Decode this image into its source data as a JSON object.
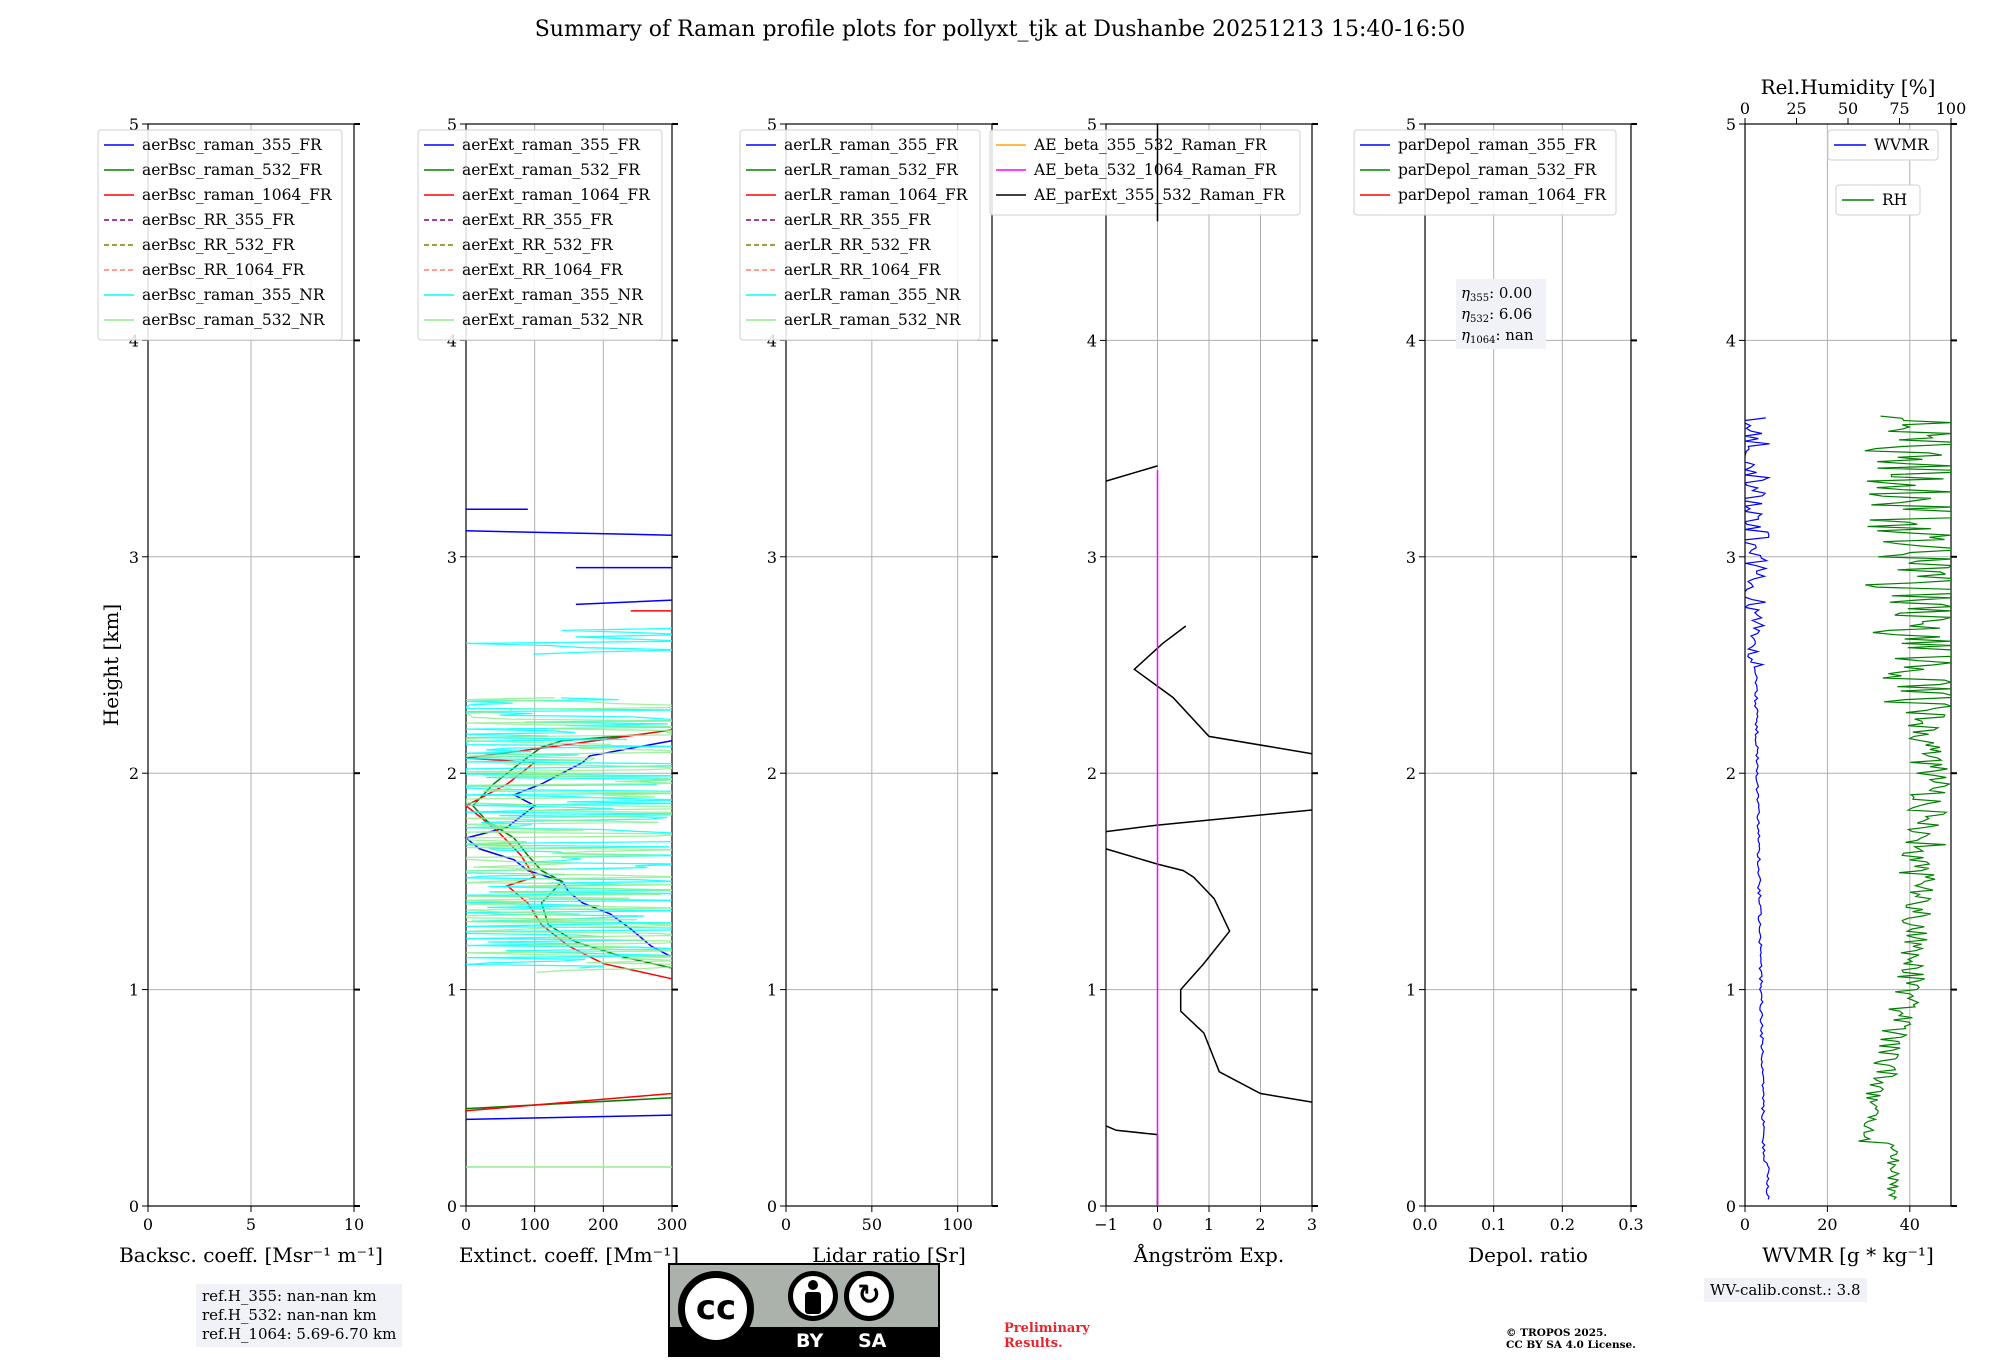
{
  "title": "Summary of Raman profile plots for pollyxt_tjk at Dushanbe 20251213 15:40-16:50",
  "colors": {
    "blue": "#0000ff",
    "green": "#008000",
    "red": "#ff0000",
    "purple": "#800080",
    "olive": "#808000",
    "salmon": "#fa8072",
    "cyan": "#00ffff",
    "lightgreen": "#90ee90",
    "orange": "#ffa500",
    "magenta": "#ff00ff",
    "black": "#000000"
  },
  "panels": [
    {
      "key": "bsc",
      "xlabel": "Backsc. coeff. [Msr⁻¹ m⁻¹]",
      "xticks": [
        "0",
        "5",
        "10"
      ],
      "xlim": [
        0,
        10
      ],
      "ylabel": "Height [km]",
      "yticks": [
        "0",
        "1",
        "2",
        "3",
        "4",
        "5"
      ],
      "legend": [
        {
          "label": "aerBsc_raman_355_FR",
          "color": "#0000ff",
          "dash": false
        },
        {
          "label": "aerBsc_raman_532_FR",
          "color": "#008000",
          "dash": false
        },
        {
          "label": "aerBsc_raman_1064_FR",
          "color": "#ff0000",
          "dash": false
        },
        {
          "label": "aerBsc_RR_355_FR",
          "color": "#800080",
          "dash": true
        },
        {
          "label": "aerBsc_RR_532_FR",
          "color": "#808000",
          "dash": true
        },
        {
          "label": "aerBsc_RR_1064_FR",
          "color": "#fa8072",
          "dash": true
        },
        {
          "label": "aerBsc_raman_355_NR",
          "color": "#00ffff",
          "dash": false
        },
        {
          "label": "aerBsc_raman_532_NR",
          "color": "#90ee90",
          "dash": false
        }
      ]
    },
    {
      "key": "ext",
      "xlabel": "Extinct. coeff. [Mm⁻¹]",
      "xticks": [
        "0",
        "100",
        "200",
        "300"
      ],
      "xlim": [
        0,
        300
      ],
      "yticks": [
        "0",
        "1",
        "2",
        "3",
        "4",
        "5"
      ],
      "legend": [
        {
          "label": "aerExt_raman_355_FR",
          "color": "#0000ff",
          "dash": false
        },
        {
          "label": "aerExt_raman_532_FR",
          "color": "#008000",
          "dash": false
        },
        {
          "label": "aerExt_raman_1064_FR",
          "color": "#ff0000",
          "dash": false
        },
        {
          "label": "aerExt_RR_355_FR",
          "color": "#800080",
          "dash": true
        },
        {
          "label": "aerExt_RR_532_FR",
          "color": "#808000",
          "dash": true
        },
        {
          "label": "aerExt_RR_1064_FR",
          "color": "#fa8072",
          "dash": true
        },
        {
          "label": "aerExt_raman_355_NR",
          "color": "#00ffff",
          "dash": false
        },
        {
          "label": "aerExt_raman_532_NR",
          "color": "#90ee90",
          "dash": false
        }
      ]
    },
    {
      "key": "lr",
      "xlabel": "Lidar ratio [Sr]",
      "xticks": [
        "0",
        "50",
        "100"
      ],
      "xlim": [
        0,
        120
      ],
      "yticks": [
        "0",
        "1",
        "2",
        "3",
        "4",
        "5"
      ],
      "legend": [
        {
          "label": "aerLR_raman_355_FR",
          "color": "#0000ff",
          "dash": false
        },
        {
          "label": "aerLR_raman_532_FR",
          "color": "#008000",
          "dash": false
        },
        {
          "label": "aerLR_raman_1064_FR",
          "color": "#ff0000",
          "dash": false
        },
        {
          "label": "aerLR_RR_355_FR",
          "color": "#800080",
          "dash": true
        },
        {
          "label": "aerLR_RR_532_FR",
          "color": "#808000",
          "dash": true
        },
        {
          "label": "aerLR_RR_1064_FR",
          "color": "#fa8072",
          "dash": true
        },
        {
          "label": "aerLR_raman_355_NR",
          "color": "#00ffff",
          "dash": false
        },
        {
          "label": "aerLR_raman_532_NR",
          "color": "#90ee90",
          "dash": false
        }
      ]
    },
    {
      "key": "ae",
      "xlabel": "Ångström Exp.",
      "xticks": [
        "−1",
        "0",
        "1",
        "2",
        "3"
      ],
      "xlim": [
        -1,
        3
      ],
      "yticks": [
        "0",
        "1",
        "2",
        "3",
        "4",
        "5"
      ],
      "legend": [
        {
          "label": "AE_beta_355_532_Raman_FR",
          "color": "#ffa500",
          "dash": false
        },
        {
          "label": "AE_beta_532_1064_Raman_FR",
          "color": "#ff00ff",
          "dash": false
        },
        {
          "label": "AE_parExt_355_532_Raman_FR",
          "color": "#000000",
          "dash": false
        }
      ]
    },
    {
      "key": "depol",
      "xlabel": "Depol. ratio",
      "xticks": [
        "0.0",
        "0.1",
        "0.2",
        "0.3"
      ],
      "xlim": [
        0,
        0.3
      ],
      "yticks": [
        "0",
        "1",
        "2",
        "3",
        "4",
        "5"
      ],
      "legend": [
        {
          "label": "parDepol_raman_355_FR",
          "color": "#0000ff",
          "dash": false
        },
        {
          "label": "parDepol_raman_532_FR",
          "color": "#008000",
          "dash": false
        },
        {
          "label": "parDepol_raman_1064_FR",
          "color": "#ff0000",
          "dash": false
        }
      ],
      "eta": {
        "s355": "355",
        "v355": ": 0.00",
        "s532": "532",
        "v532": ": 6.06",
        "s1064": "1064",
        "v1064": ": nan"
      }
    },
    {
      "key": "wv",
      "xlabel": "WVMR [g * kg⁻¹]",
      "xticks": [
        "0",
        "20",
        "40"
      ],
      "xlim": [
        0,
        50
      ],
      "yticks": [
        "0",
        "1",
        "2",
        "3",
        "4",
        "5"
      ],
      "top_label": "Rel.Humidity [%]",
      "top_ticks": [
        "0",
        "25",
        "50",
        "75",
        "100"
      ],
      "legend_wvmr": {
        "label": "WVMR",
        "color": "#0000ff"
      },
      "legend_rh": {
        "label": "RH",
        "color": "#008000"
      }
    }
  ],
  "ref_heights": [
    "ref.H_355: nan-nan km",
    "ref.H_532: nan-nan km",
    "ref.H_1064: 5.69-6.70 km"
  ],
  "wv_calib": "WV-calib.const.: 3.8",
  "preliminary": [
    "Preliminary",
    "Results."
  ],
  "copyright": [
    "© TROPOS 2025.",
    "CC BY SA 4.0 License."
  ],
  "license_badge": {
    "cc": "cc",
    "by": "BY",
    "sa": "SA"
  },
  "chart_data": {
    "type": "line",
    "ylabel": "Height [km]",
    "ylim": [
      0,
      5
    ],
    "series": [
      {
        "name": "aerExt_raman_355_FR",
        "panel": "ext",
        "points": [
          [
            300,
            0.42
          ],
          [
            0,
            0.4
          ],
          [
            null,
            null
          ],
          [
            300,
            1.15
          ],
          [
            270,
            1.2
          ],
          [
            240,
            1.28
          ],
          [
            210,
            1.35
          ],
          [
            170,
            1.4
          ],
          [
            150,
            1.45
          ],
          [
            140,
            1.5
          ],
          [
            90,
            1.55
          ],
          [
            70,
            1.6
          ],
          [
            20,
            1.65
          ],
          [
            0,
            1.7
          ],
          [
            60,
            1.75
          ],
          [
            80,
            1.8
          ],
          [
            100,
            1.85
          ],
          [
            70,
            1.9
          ],
          [
            110,
            1.95
          ],
          [
            140,
            2.0
          ],
          [
            170,
            2.05
          ],
          [
            180,
            2.08
          ],
          [
            300,
            2.15
          ],
          [
            null,
            null
          ],
          [
            0,
            3.12
          ],
          [
            300,
            3.1
          ],
          [
            null,
            null
          ],
          [
            160,
            2.95
          ],
          [
            300,
            2.95
          ],
          [
            null,
            null
          ],
          [
            160,
            2.78
          ],
          [
            300,
            2.8
          ],
          [
            null,
            null
          ],
          [
            0,
            3.22
          ],
          [
            90,
            3.22
          ]
        ]
      },
      {
        "name": "aerExt_raman_532_FR",
        "panel": "ext",
        "points": [
          [
            0,
            0.45
          ],
          [
            300,
            0.5
          ],
          [
            null,
            null
          ],
          [
            300,
            1.1
          ],
          [
            230,
            1.15
          ],
          [
            160,
            1.22
          ],
          [
            120,
            1.3
          ],
          [
            110,
            1.4
          ],
          [
            140,
            1.5
          ],
          [
            110,
            1.55
          ],
          [
            90,
            1.62
          ],
          [
            70,
            1.7
          ],
          [
            30,
            1.78
          ],
          [
            10,
            1.85
          ],
          [
            40,
            1.95
          ],
          [
            80,
            2.05
          ],
          [
            110,
            2.12
          ],
          [
            140,
            2.15
          ],
          [
            260,
            2.18
          ]
        ]
      },
      {
        "name": "aerExt_raman_1064_FR",
        "panel": "ext",
        "points": [
          [
            0,
            0.44
          ],
          [
            300,
            0.52
          ],
          [
            null,
            null
          ],
          [
            300,
            1.05
          ],
          [
            200,
            1.12
          ],
          [
            150,
            1.2
          ],
          [
            110,
            1.3
          ],
          [
            90,
            1.4
          ],
          [
            60,
            1.48
          ],
          [
            100,
            1.52
          ],
          [
            80,
            1.62
          ],
          [
            50,
            1.72
          ],
          [
            20,
            1.8
          ],
          [
            0,
            1.85
          ],
          [
            60,
            1.95
          ],
          [
            100,
            2.05
          ],
          [
            0,
            2.07
          ],
          [
            120,
            2.12
          ],
          [
            300,
            2.2
          ],
          [
            null,
            null
          ],
          [
            240,
            2.75
          ],
          [
            300,
            2.75
          ]
        ]
      },
      {
        "name": "AE_parExt_355_532_Raman_FR",
        "panel": "ae",
        "points": [
          [
            0,
            0
          ],
          [
            0,
            0.33
          ],
          [
            -0.8,
            0.35
          ],
          [
            -1,
            0.37
          ],
          [
            null,
            null
          ],
          [
            3,
            0.48
          ],
          [
            2,
            0.52
          ],
          [
            1.2,
            0.62
          ],
          [
            0.9,
            0.8
          ],
          [
            0.45,
            0.9
          ],
          [
            0.45,
            1.0
          ],
          [
            0.9,
            1.12
          ],
          [
            1.4,
            1.27
          ],
          [
            1.1,
            1.42
          ],
          [
            0.7,
            1.52
          ],
          [
            0.5,
            1.55
          ],
          [
            0,
            1.58
          ],
          [
            -1,
            1.65
          ],
          [
            null,
            null
          ],
          [
            -1,
            1.73
          ],
          [
            0,
            1.76
          ],
          [
            3,
            1.83
          ],
          [
            null,
            null
          ],
          [
            3,
            2.09
          ],
          [
            1,
            2.17
          ],
          [
            0.3,
            2.35
          ],
          [
            -0.45,
            2.48
          ],
          [
            0.1,
            2.6
          ],
          [
            0.55,
            2.68
          ],
          [
            null,
            null
          ],
          [
            0,
            3.42
          ],
          [
            -1,
            3.35
          ],
          [
            null,
            null
          ],
          [
            0,
            4.55
          ],
          [
            0,
            5
          ]
        ]
      },
      {
        "name": "AE_beta_532_1064_Raman_FR",
        "panel": "ae",
        "points": [
          [
            0,
            0
          ],
          [
            0,
            3.4
          ]
        ]
      }
    ]
  }
}
